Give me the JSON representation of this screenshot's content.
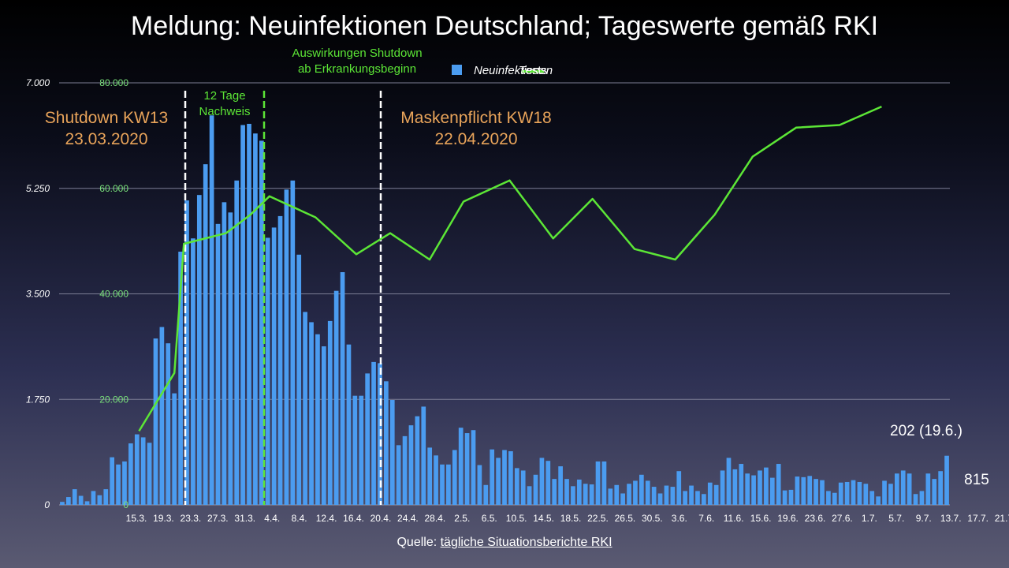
{
  "title": "Meldung: Neuinfektionen Deutschland; Tageswerte gemäß RKI",
  "legend": {
    "bars": "Neuinfektionen",
    "line": "Tests"
  },
  "annotations": {
    "shutdown_line1": "Shutdown KW13",
    "shutdown_line2": "23.03.2020",
    "nachweis_line1": "12 Tage",
    "nachweis_line2": "Nachweis",
    "auswirkungen_line1": "Auswirkungen Shutdown",
    "auswirkungen_line2": "ab Erkrankungsbeginn",
    "masken_line1": "Maskenpflicht KW18",
    "masken_line2": "22.04.2020",
    "last_value_label": "202 (19.6.)",
    "last_bar_value": "815"
  },
  "source": {
    "prefix": "Quelle: ",
    "link_text": "tägliche Situationsberichte RKI"
  },
  "colors": {
    "bars": "#4b9cf0",
    "line": "#5ce636",
    "orange": "#e9a45a",
    "dashed_white": "#ffffff",
    "dashed_green": "#5ce636"
  },
  "chart_data": {
    "type": "bar",
    "title": "Meldung: Neuinfektionen Deutschland; Tageswerte gemäß RKI",
    "y_left": {
      "ylim": [
        0,
        7000
      ],
      "ticks": [
        "0",
        "1.750",
        "3.500",
        "5.250",
        "7.000"
      ]
    },
    "y_right": {
      "ylim": [
        0,
        80000
      ],
      "ticks": [
        "0",
        "20.000",
        "40.000",
        "60.000",
        "80.000"
      ]
    },
    "x_tick_labels": [
      "15.3.",
      "19.3.",
      "23.3.",
      "27.3.",
      "31.3.",
      "4.4.",
      "8.4.",
      "12.4.",
      "16.4.",
      "20.4.",
      "24.4.",
      "28.4.",
      "2.5.",
      "6.5.",
      "10.5.",
      "14.5.",
      "18.5.",
      "22.5.",
      "26.5.",
      "30.5.",
      "3.6.",
      "7.6.",
      "11.6.",
      "15.6.",
      "19.6.",
      "23.6.",
      "27.6.",
      "1.7.",
      "5.7.",
      "9.7.",
      "13.7.",
      "17.7.",
      "21.7."
    ],
    "bar_series": {
      "name": "Neuinfektionen",
      "values": [
        50,
        130,
        260,
        150,
        60,
        230,
        160,
        260,
        790,
        670,
        720,
        1020,
        1170,
        1120,
        1030,
        2760,
        2950,
        2680,
        1850,
        4200,
        5050,
        4420,
        5140,
        5650,
        6460,
        4660,
        5020,
        4850,
        5380,
        6300,
        6320,
        6160,
        6040,
        4430,
        4600,
        4790,
        5230,
        5380,
        4150,
        3200,
        3030,
        2830,
        2630,
        3050,
        3550,
        3860,
        2660,
        1810,
        1810,
        2180,
        2370,
        2350,
        2050,
        1740,
        990,
        1140,
        1320,
        1470,
        1630,
        950,
        820,
        670,
        670,
        910,
        1280,
        1190,
        1240,
        660,
        330,
        920,
        780,
        910,
        890,
        610,
        570,
        310,
        500,
        780,
        730,
        430,
        640,
        430,
        310,
        420,
        350,
        340,
        720,
        720,
        270,
        330,
        190,
        350,
        400,
        500,
        400,
        300,
        190,
        320,
        300,
        560,
        230,
        320,
        230,
        180,
        370,
        330,
        570,
        780,
        590,
        680,
        520,
        490,
        570,
        620,
        450,
        680,
        240,
        250,
        470,
        460,
        480,
        430,
        410,
        230,
        200,
        370,
        380,
        410,
        380,
        350,
        230,
        140,
        400,
        350,
        520,
        570,
        520,
        180,
        230,
        520,
        430,
        560,
        815
      ]
    },
    "line_series": {
      "name": "Tests",
      "x_tick_index": [
        0,
        1.35,
        2.55,
        3.65,
        5.55,
        6.6,
        7.85,
        8.75,
        10.75,
        11.5,
        12.75,
        13.8,
        14.75,
        15.8,
        16.8,
        17.85,
        18.8,
        19.7,
        20.75,
        21.75,
        22.75,
        24.1,
        24.75,
        25.85,
        26.85,
        27.9,
        28.7
      ]
    }
  }
}
